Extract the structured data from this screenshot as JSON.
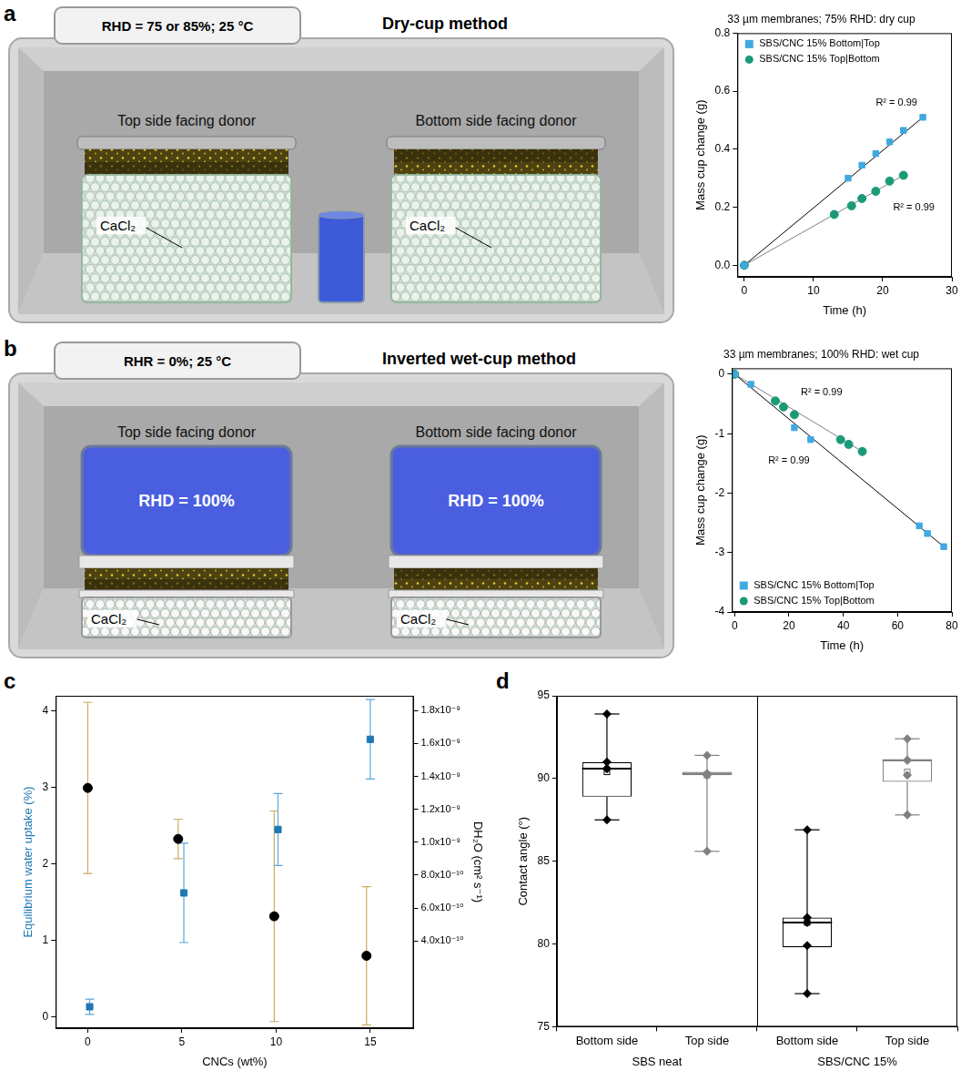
{
  "diagrams": [
    {
      "panel_label": "a",
      "header": "RHD = 75 or 85%; 25 °C",
      "title": "Dry-cup method",
      "cups": [
        {
          "caption": "Top side facing donor",
          "desiccant": "CaCl₂"
        },
        {
          "caption": "Bottom side facing donor",
          "desiccant": "CaCl₂"
        }
      ]
    },
    {
      "panel_label": "b",
      "header": "RHR = 0%; 25 °C",
      "title": "Inverted wet-cup method",
      "cups": [
        {
          "caption": "Top side facing donor",
          "donor": "RHD = 100%",
          "desiccant": "CaCl₂"
        },
        {
          "caption": "Bottom side facing donor",
          "donor": "RHD = 100%",
          "desiccant": "CaCl₂"
        }
      ]
    }
  ],
  "chart_data": [
    {
      "type": "scatter",
      "title": "33 µm membranes; 75% RHD: dry cup",
      "x_label": "Time (h)",
      "y_label": "Mass cup change (g)",
      "xlim": [
        -1,
        30
      ],
      "xticks": [
        0,
        10,
        20,
        30
      ],
      "ylim": [
        -0.04,
        0.8
      ],
      "yticks": [
        {
          "value": 0,
          "label": "0.0"
        },
        0.2,
        0.4,
        0.6,
        0.8
      ],
      "grid": false,
      "legend": "upper left",
      "series": [
        {
          "name": "SBS/CNC 15% Bottom|Top",
          "color": "#3fa9e0",
          "marker": "square",
          "x": [
            0,
            15,
            17,
            19,
            21,
            23,
            25.8
          ],
          "values": [
            0,
            0.3,
            0.345,
            0.385,
            0.425,
            0.465,
            0.51
          ],
          "fit": {
            "x": [
              0,
              25.8
            ],
            "values": [
              0,
              0.51
            ]
          }
        },
        {
          "name": "SBS/CNC 15% Top|Bottom",
          "color": "#1c9a77",
          "marker": "circle",
          "x": [
            0,
            13,
            15.5,
            17,
            19,
            21,
            23
          ],
          "values": [
            0,
            0.175,
            0.205,
            0.23,
            0.255,
            0.29,
            0.31
          ],
          "fit": {
            "x": [
              0,
              23
            ],
            "values": [
              0,
              0.31
            ]
          }
        }
      ],
      "annotations": [
        {
          "text": "R² = 0.99",
          "x": 22,
          "y": 0.56
        },
        {
          "text": "R² = 0.99",
          "x": 24.5,
          "y": 0.2
        }
      ]
    },
    {
      "type": "scatter",
      "title": "33 µm membranes; 100% RHD: wet cup",
      "x_label": "Time (h)",
      "y_label": "Mass cup change (g)",
      "xlim": [
        -1,
        80
      ],
      "xticks": [
        0,
        20,
        40,
        60,
        80
      ],
      "ylim": [
        -4,
        0.1
      ],
      "yticks": [
        -4,
        -3,
        -2,
        -1,
        0
      ],
      "grid": false,
      "legend": "lower left",
      "series": [
        {
          "name": "SBS/CNC 15% Bottom|Top",
          "color": "#3fa9e0",
          "marker": "square",
          "x": [
            0,
            6,
            22,
            28,
            68,
            71,
            77
          ],
          "values": [
            0,
            -0.17,
            -0.9,
            -1.1,
            -2.55,
            -2.68,
            -2.9
          ],
          "fit": {
            "x": [
              0,
              77
            ],
            "values": [
              0,
              -2.9
            ]
          }
        },
        {
          "name": "SBS/CNC 15% Top|Bottom",
          "color": "#1c9a77",
          "marker": "circle",
          "x": [
            0,
            15,
            18,
            22,
            39,
            42,
            47
          ],
          "values": [
            0,
            -0.45,
            -0.55,
            -0.68,
            -1.1,
            -1.18,
            -1.3
          ],
          "fit": {
            "x": [
              0,
              47
            ],
            "values": [
              0,
              -1.3
            ]
          }
        }
      ],
      "annotations": [
        {
          "text": "R² = 0.99",
          "x": 32,
          "y": -0.3
        },
        {
          "text": "R² = 0.99",
          "x": 20,
          "y": -1.45
        }
      ]
    },
    {
      "type": "scatter",
      "panel_label": "c",
      "x_label": "CNCs (wt%)",
      "y_label": "Equilibrium water uptake (%)",
      "y2_label": "DH₂O (cm² s⁻¹)",
      "xlim": [
        -1.7,
        17.3
      ],
      "xticks": [
        0,
        5,
        10,
        15
      ],
      "ylim": [
        -0.15,
        4.2
      ],
      "yticks": [
        0,
        1,
        2,
        3,
        4
      ],
      "y2lim": [
        -1.3e-10,
        1.89e-09
      ],
      "y2ticks": [
        {
          "value": 4e-10,
          "label": "4.0x10⁻¹⁰"
        },
        {
          "value": 6e-10,
          "label": "6.0x10⁻¹⁰"
        },
        {
          "value": 8e-10,
          "label": "8.0x10⁻¹⁰"
        },
        {
          "value": 1e-09,
          "label": "1.0x10⁻⁹"
        },
        {
          "value": 1.2e-09,
          "label": "1.2x10⁻⁹"
        },
        {
          "value": 1.4e-09,
          "label": "1.4x10⁻⁹"
        },
        {
          "value": 1.6e-09,
          "label": "1.6x10⁻⁹"
        },
        {
          "value": 1.8e-09,
          "label": "1.8x10⁻⁹"
        }
      ],
      "grid": false,
      "series": [
        {
          "color": "#1f78b4",
          "marker": "square",
          "x": [
            0.1,
            5.1,
            10.1,
            15
          ],
          "values": [
            0.13,
            1.62,
            2.45,
            3.63
          ],
          "error": [
            0.1,
            0.65,
            0.47,
            0.52
          ]
        },
        {
          "color": "#000000",
          "marker": "circle",
          "axis": "y2",
          "x": [
            0,
            4.8,
            9.9,
            14.8
          ],
          "values": [
            1.33e-09,
            1.02e-09,
            5.5e-10,
            3.1e-10
          ],
          "error": [
            5.2e-10,
            1.2e-10,
            6.4e-10,
            4.2e-10
          ]
        }
      ]
    },
    {
      "type": "box",
      "panel_label": "d",
      "y_label": "Contact angle (°)",
      "ylim": [
        75,
        95
      ],
      "yticks": [
        75,
        80,
        85,
        90,
        95
      ],
      "grid": false,
      "categories": [
        "Bottom side",
        "Top side",
        "Bottom side",
        "Top side"
      ],
      "groups": [
        {
          "label": "SBS neat",
          "categories": [
            "Bottom side",
            "Top side"
          ]
        },
        {
          "label": "SBS/CNC 15%",
          "categories": [
            "Bottom side",
            "Top side"
          ]
        }
      ],
      "colors": [
        "#000000",
        "#808080",
        "#000000",
        "#808080"
      ],
      "boxes": [
        {
          "whisker_low": 87.5,
          "q1": 88.9,
          "median": 90.6,
          "q3": 91.0,
          "whisker_high": 93.9,
          "mean": 90.4,
          "points": [
            87.5,
            90.6,
            90.6,
            91.0,
            93.9
          ]
        },
        {
          "whisker_low": 85.6,
          "q1": 90.2,
          "median": 90.3,
          "q3": 90.4,
          "whisker_high": 91.4,
          "mean": 90.2,
          "points": [
            85.6,
            90.2,
            90.3,
            90.3,
            91.4
          ]
        },
        {
          "whisker_low": 77.0,
          "q1": 79.8,
          "median": 81.3,
          "q3": 81.6,
          "whisker_high": 86.9,
          "mean": 81.3,
          "points": [
            77.0,
            79.9,
            81.3,
            81.6,
            86.9
          ]
        },
        {
          "whisker_low": 87.8,
          "q1": 89.8,
          "median": 91.1,
          "q3": 91.1,
          "whisker_high": 92.4,
          "mean": 90.4,
          "points": [
            87.8,
            90.2,
            91.1,
            91.1,
            92.4
          ]
        }
      ]
    }
  ]
}
